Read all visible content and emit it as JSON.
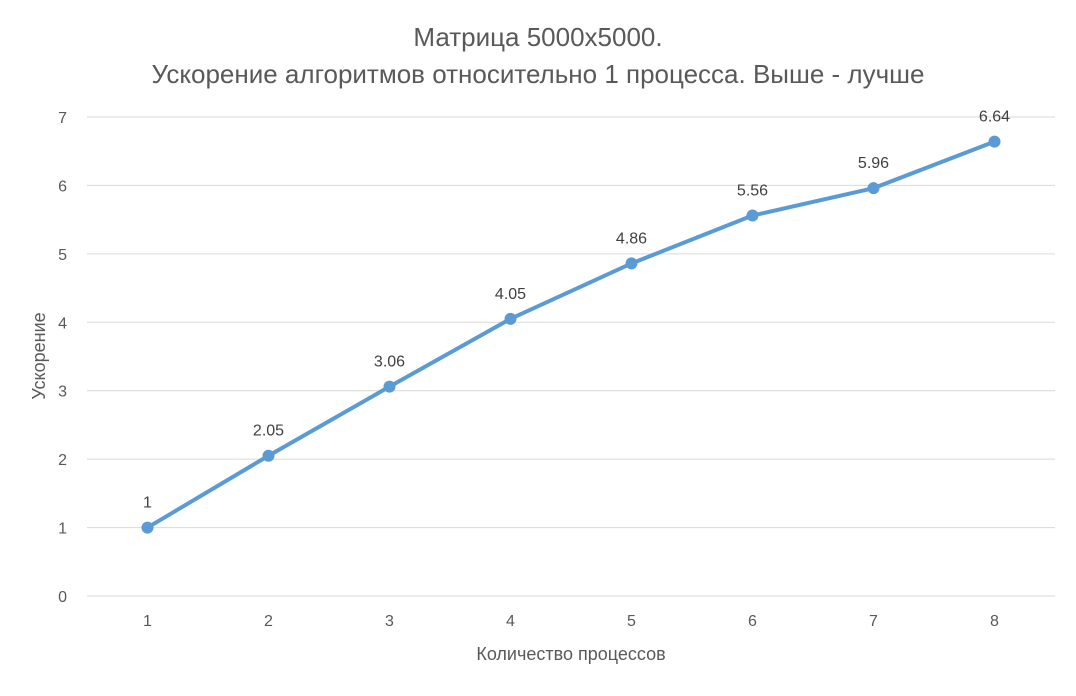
{
  "chart_data": {
    "type": "line",
    "title": "Матрица 5000x5000.",
    "subtitle": "Ускорение алгоритмов относительно 1 процесса. Выше - лучше",
    "xlabel": "Количество процессов",
    "ylabel": "Ускорение",
    "categories": [
      "1",
      "2",
      "3",
      "4",
      "5",
      "6",
      "7",
      "8"
    ],
    "series": [
      {
        "values": [
          1,
          2.05,
          3.06,
          4.05,
          4.86,
          5.56,
          5.96,
          6.64
        ],
        "labels": [
          "1",
          "2.05",
          "3.06",
          "4.05",
          "4.86",
          "5.56",
          "5.96",
          "6.64"
        ],
        "color": "#5b9bd5"
      }
    ],
    "ylim": [
      0,
      7
    ],
    "yticks": [
      "0",
      "1",
      "2",
      "3",
      "4",
      "5",
      "6",
      "7"
    ],
    "grid": true,
    "legend": "none"
  }
}
